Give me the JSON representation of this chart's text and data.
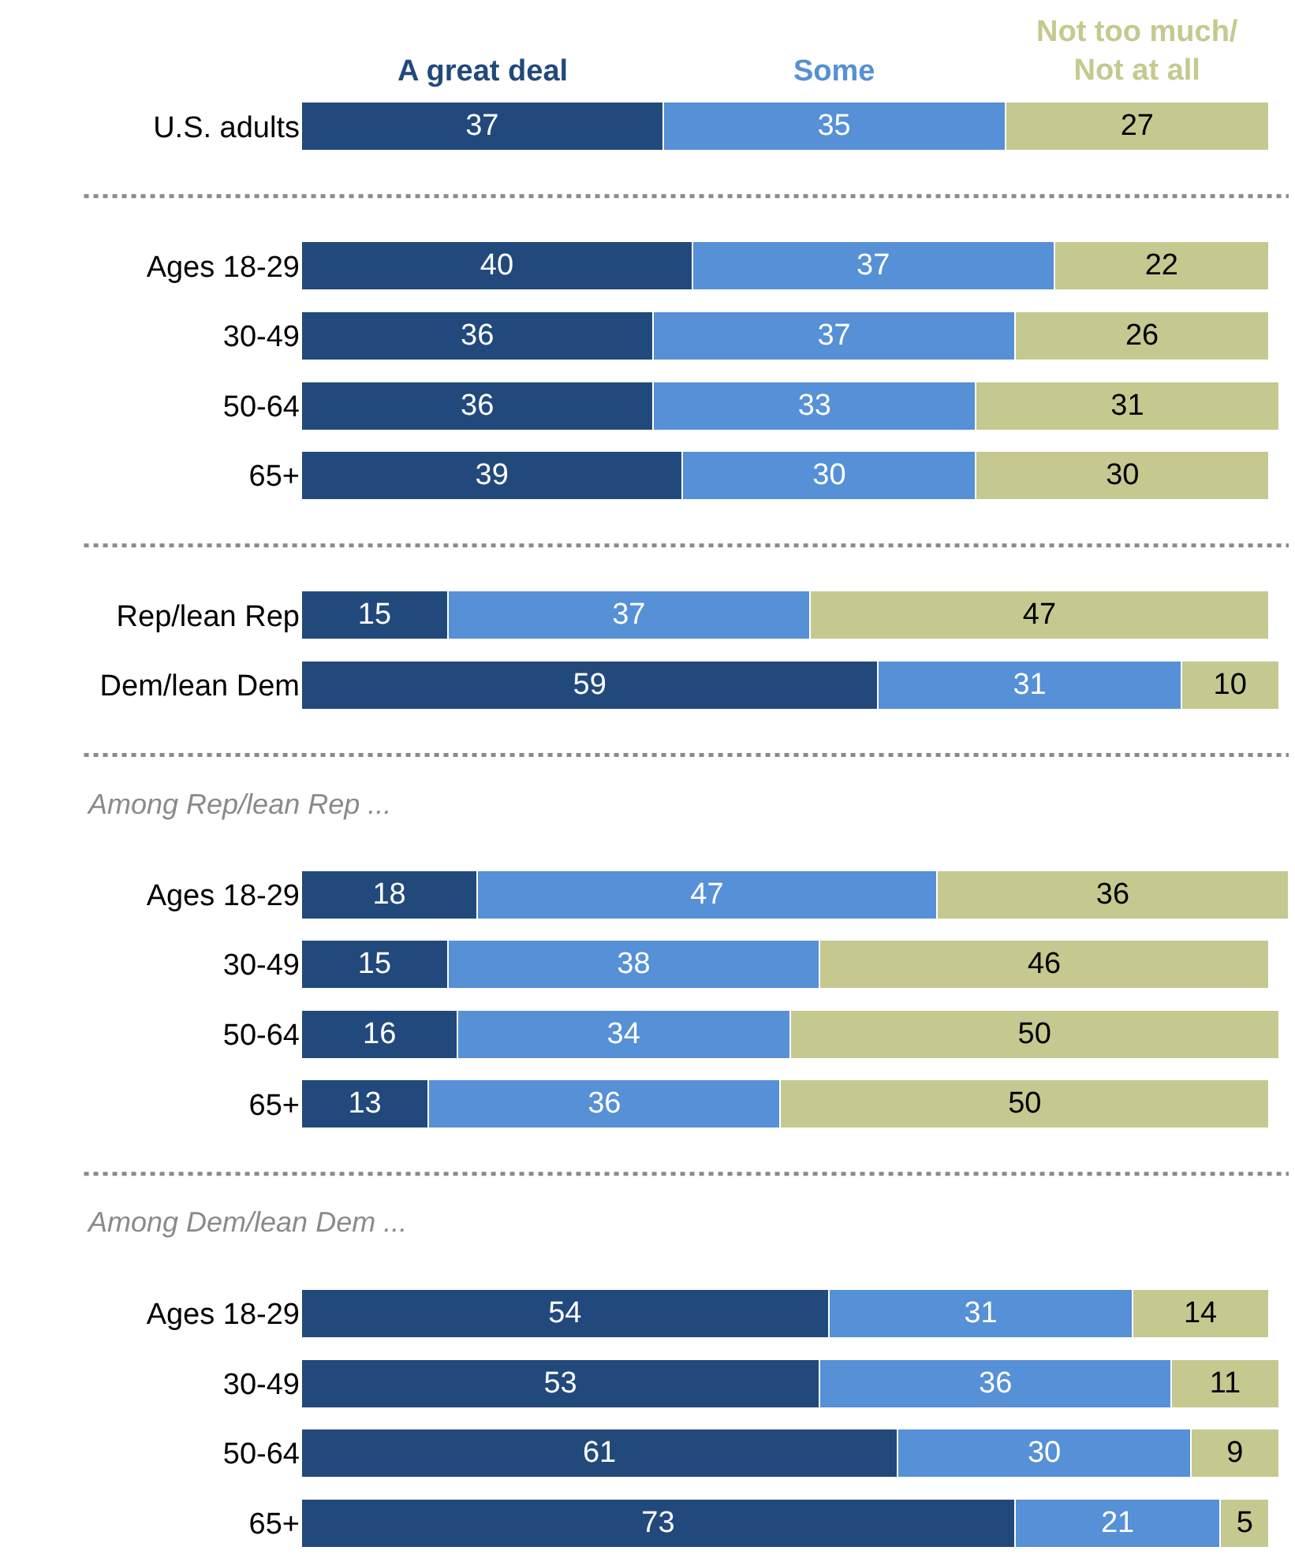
{
  "chart_data": {
    "type": "bar",
    "orientation": "horizontal",
    "stacked": true,
    "data_labels": true,
    "legend": "top",
    "xlim": [
      0,
      101
    ],
    "categories": [
      "U.S. adults",
      null,
      "Ages 18-29",
      "30-49",
      "50-64",
      "65+",
      null,
      "Rep/lean Rep",
      "Dem/lean Dem",
      null,
      null,
      "Ages 18-29",
      "30-49",
      "50-64",
      "65+",
      null,
      null,
      "Ages 18-29",
      "30-49",
      "50-64",
      "65+"
    ],
    "series": [
      {
        "name": "A great deal",
        "color": "#22497c",
        "values": [
          37,
          null,
          40,
          36,
          36,
          39,
          null,
          15,
          59,
          null,
          null,
          18,
          15,
          16,
          13,
          null,
          null,
          54,
          53,
          61,
          73
        ]
      },
      {
        "name": "Some",
        "color": "#5690d6",
        "values": [
          35,
          null,
          37,
          37,
          33,
          30,
          null,
          37,
          31,
          null,
          null,
          47,
          38,
          34,
          36,
          null,
          null,
          31,
          36,
          30,
          21
        ]
      },
      {
        "name": "Not too much/\nNot at all",
        "color": "#c5c98f",
        "values": [
          27,
          null,
          22,
          26,
          31,
          30,
          null,
          47,
          10,
          null,
          null,
          36,
          46,
          50,
          50,
          null,
          null,
          14,
          11,
          9,
          5
        ]
      }
    ],
    "annotations": [
      "Among Rep/lean Rep ...",
      "Among Dem/lean Dem ..."
    ]
  }
}
